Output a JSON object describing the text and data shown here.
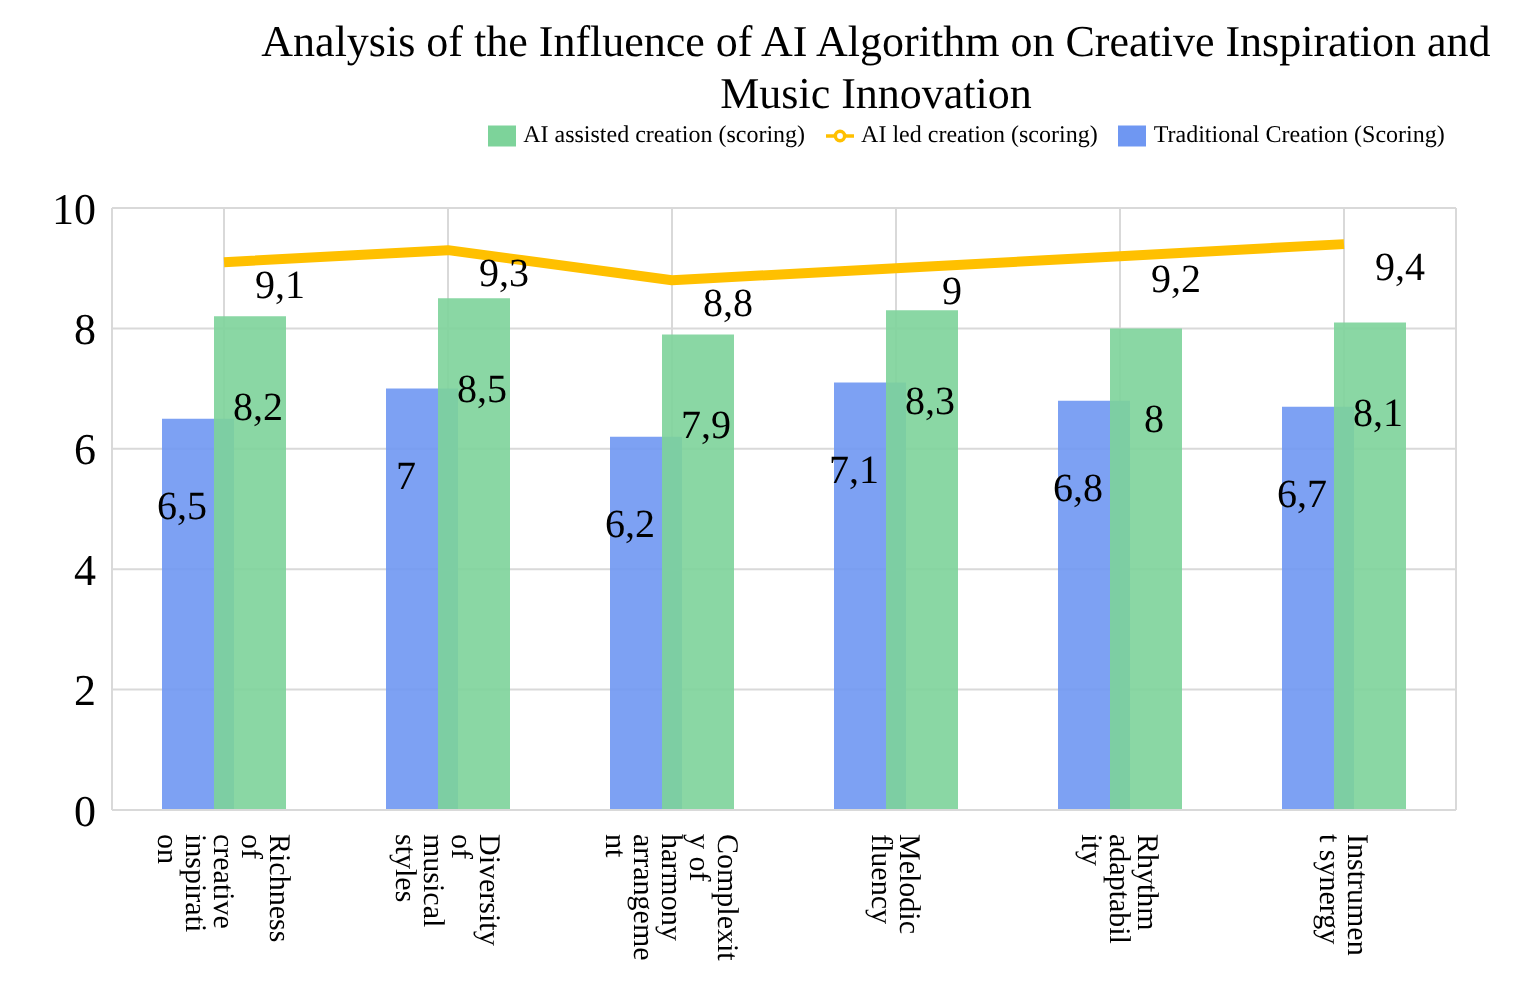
{
  "chart_data": {
    "type": "bar",
    "title": "Analysis of the Influence of AI Algorithm on Creative Inspiration and Music Innovation",
    "categories": [
      "Richness of creative inspiration",
      "Diversity of musical styles",
      "Complexity of harmony arrangement",
      "Melodic fluency",
      "Rhythm adaptability",
      "Instrument synergy"
    ],
    "series": [
      {
        "name": "Traditional Creation (Scoring)",
        "color": "#6f97f2",
        "values": [
          6.5,
          7,
          6.2,
          7.1,
          6.8,
          6.7
        ],
        "value_labels": [
          "6,5",
          "7",
          "6,2",
          "7,1",
          "6,8",
          "6,7"
        ]
      },
      {
        "name": "AI assisted creation (scoring)",
        "color": "#7dd39a",
        "values": [
          8.2,
          8.5,
          7.9,
          8.3,
          8,
          8.1
        ],
        "value_labels": [
          "8,2",
          "8,5",
          "7,9",
          "8,3",
          "8",
          "8,1"
        ]
      },
      {
        "name": "AI led creation (scoring)",
        "type": "line",
        "color": "#ffc000",
        "values": [
          9.1,
          9.3,
          8.8,
          9,
          9.2,
          9.4
        ],
        "value_labels": [
          "9,1",
          "9,3",
          "8,8",
          "9",
          "9,2",
          "9,4"
        ]
      }
    ],
    "ylim": [
      0,
      10
    ],
    "yticks": [
      0,
      2,
      4,
      6,
      8,
      10
    ],
    "grid": true,
    "legend": "top"
  }
}
